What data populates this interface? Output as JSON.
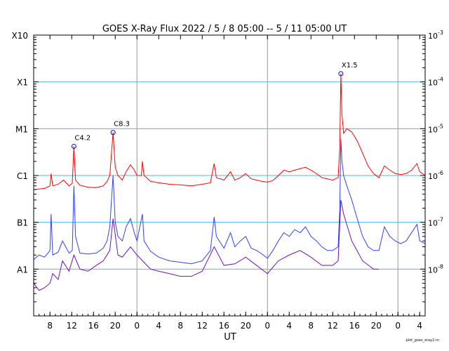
{
  "chart_data": {
    "type": "line",
    "title": "GOES X-Ray Flux   2022 /  5 /  8   05:00 --  5 / 11   05:00   UT",
    "xlabel": "UT",
    "credit": "plot_goes_xray2.rn",
    "x_range_hours": [
      0,
      72
    ],
    "x_tick_labels": [
      "8",
      "12",
      "16",
      "20",
      "0",
      "4",
      "8",
      "12",
      "16",
      "20",
      "0",
      "4",
      "8",
      "12",
      "16",
      "20",
      "0",
      "4"
    ],
    "x_tick_hours": [
      3,
      7,
      11,
      15,
      19,
      23,
      27,
      31,
      35,
      39,
      43,
      47,
      51,
      55,
      59,
      63,
      67,
      71
    ],
    "day_boundaries_hours": [
      19,
      43,
      67
    ],
    "y_scale": "log",
    "ylim": [
      1e-09,
      0.001
    ],
    "left_axis_labels": [
      {
        "label": "A1",
        "value": 1e-08
      },
      {
        "label": "B1",
        "value": 1e-07
      },
      {
        "label": "C1",
        "value": 1e-06
      },
      {
        "label": "M1",
        "value": 1e-05
      },
      {
        "label": "X1",
        "value": 0.0001
      },
      {
        "label": "X10",
        "value": 0.001
      }
    ],
    "right_axis_labels": [
      {
        "label": "10",
        "exp": "-8",
        "value": 1e-08
      },
      {
        "label": "10",
        "exp": "-7",
        "value": 1e-07
      },
      {
        "label": "10",
        "exp": "-6",
        "value": 1e-06
      },
      {
        "label": "10",
        "exp": "-5",
        "value": 1e-05
      },
      {
        "label": "10",
        "exp": "-4",
        "value": 0.0001
      },
      {
        "label": "10",
        "exp": "-3",
        "value": 0.001
      }
    ],
    "grid_levels": [
      1e-08,
      1e-07,
      1e-06,
      1e-05,
      0.0001
    ],
    "flares": [
      {
        "label": "C4.2",
        "hour": 7.4,
        "value": 4.2e-06
      },
      {
        "label": "C8.3",
        "hour": 14.6,
        "value": 8.3e-06
      },
      {
        "label": "X1.5",
        "hour": 56.5,
        "value": 0.00015
      }
    ],
    "series": [
      {
        "color": "#ff0000",
        "points": [
          [
            0,
            5e-07
          ],
          [
            2,
            5.3e-07
          ],
          [
            3,
            6e-07
          ],
          [
            3.2,
            1.1e-06
          ],
          [
            3.5,
            6e-07
          ],
          [
            4.5,
            6.5e-07
          ],
          [
            5.5,
            8e-07
          ],
          [
            6.5,
            6e-07
          ],
          [
            7.1,
            6.8e-07
          ],
          [
            7.4,
            4.2e-06
          ],
          [
            7.7,
            8e-07
          ],
          [
            8.5,
            6.2e-07
          ],
          [
            10,
            5.6e-07
          ],
          [
            11.5,
            5.5e-07
          ],
          [
            12.8,
            6e-07
          ],
          [
            13.5,
            7.5e-07
          ],
          [
            14,
            1e-06
          ],
          [
            14.6,
            8.3e-06
          ],
          [
            15.0,
            1.5e-06
          ],
          [
            15.5,
            1e-06
          ],
          [
            16.3,
            8e-07
          ],
          [
            17,
            1.2e-06
          ],
          [
            17.8,
            1.7e-06
          ],
          [
            18.5,
            1.3e-06
          ],
          [
            19,
            1e-06
          ],
          [
            19.8,
            1e-06
          ],
          [
            20,
            2e-06
          ],
          [
            20.3,
            1e-06
          ],
          [
            21.5,
            7.5e-07
          ],
          [
            23,
            7e-07
          ],
          [
            25,
            6.5e-07
          ],
          [
            27,
            6.3e-07
          ],
          [
            29,
            6e-07
          ],
          [
            31,
            6.5e-07
          ],
          [
            32.5,
            7e-07
          ],
          [
            33.2,
            1.8e-06
          ],
          [
            33.6,
            9e-07
          ],
          [
            35,
            8e-07
          ],
          [
            36.2,
            1.2e-06
          ],
          [
            37,
            8e-07
          ],
          [
            38,
            9e-07
          ],
          [
            39,
            1.1e-06
          ],
          [
            40,
            8.5e-07
          ],
          [
            41,
            8e-07
          ],
          [
            42,
            7.5e-07
          ],
          [
            43,
            7.2e-07
          ],
          [
            44,
            7.8e-07
          ],
          [
            45,
            1e-06
          ],
          [
            46,
            1.3e-06
          ],
          [
            47,
            1.2e-06
          ],
          [
            48,
            1.3e-06
          ],
          [
            49,
            1.4e-06
          ],
          [
            50,
            1.5e-06
          ],
          [
            51,
            1.3e-06
          ],
          [
            52,
            1.1e-06
          ],
          [
            53,
            9e-07
          ],
          [
            54,
            8.5e-07
          ],
          [
            55,
            8e-07
          ],
          [
            56.0,
            9e-07
          ],
          [
            56.3,
            4e-06
          ],
          [
            56.5,
            0.00015
          ],
          [
            56.7,
            2e-05
          ],
          [
            57,
            8e-06
          ],
          [
            57.6,
            1e-05
          ],
          [
            58.5,
            8.5e-06
          ],
          [
            59.5,
            5.5e-06
          ],
          [
            60.5,
            3e-06
          ],
          [
            61.5,
            1.6e-06
          ],
          [
            62.5,
            1.1e-06
          ],
          [
            63.5,
            9e-07
          ],
          [
            64.5,
            1.6e-06
          ],
          [
            65.5,
            1.3e-06
          ],
          [
            66.5,
            1.1e-06
          ],
          [
            67.5,
            1.05e-06
          ],
          [
            68.5,
            1.1e-06
          ],
          [
            69.5,
            1.3e-06
          ],
          [
            70.5,
            1.8e-06
          ],
          [
            71,
            1.2e-06
          ],
          [
            72,
            1e-06
          ]
        ]
      },
      {
        "color": "#3040ff",
        "points": [
          [
            0,
            1.6e-08
          ],
          [
            1,
            2e-08
          ],
          [
            2,
            1.8e-08
          ],
          [
            3,
            2.5e-08
          ],
          [
            3.2,
            1.5e-07
          ],
          [
            3.5,
            2e-08
          ],
          [
            4.5,
            2.3e-08
          ],
          [
            5.3,
            4e-08
          ],
          [
            6.5,
            2.2e-08
          ],
          [
            7.1,
            2.5e-08
          ],
          [
            7.4,
            6e-07
          ],
          [
            7.7,
            5e-08
          ],
          [
            8.5,
            2.2e-08
          ],
          [
            10,
            2.1e-08
          ],
          [
            11.5,
            2.2e-08
          ],
          [
            12.8,
            2.8e-08
          ],
          [
            13.5,
            4e-08
          ],
          [
            14,
            8e-08
          ],
          [
            14.6,
            1e-06
          ],
          [
            15.0,
            1e-07
          ],
          [
            15.5,
            5e-08
          ],
          [
            16.3,
            4e-08
          ],
          [
            17,
            8e-08
          ],
          [
            17.8,
            1.2e-07
          ],
          [
            18.5,
            6e-08
          ],
          [
            19,
            4e-08
          ],
          [
            20,
            1.5e-07
          ],
          [
            20.3,
            4e-08
          ],
          [
            21.5,
            2.4e-08
          ],
          [
            23,
            1.8e-08
          ],
          [
            25,
            1.5e-08
          ],
          [
            27,
            1.4e-08
          ],
          [
            29,
            1.3e-08
          ],
          [
            31,
            1.5e-08
          ],
          [
            32.5,
            2.5e-08
          ],
          [
            33.2,
            1.3e-07
          ],
          [
            33.6,
            5e-08
          ],
          [
            35,
            2.8e-08
          ],
          [
            36.2,
            6e-08
          ],
          [
            37,
            3e-08
          ],
          [
            38,
            4e-08
          ],
          [
            39,
            5e-08
          ],
          [
            40,
            2.8e-08
          ],
          [
            41,
            2.5e-08
          ],
          [
            42,
            2.1e-08
          ],
          [
            43,
            1.7e-08
          ],
          [
            44,
            2.5e-08
          ],
          [
            45,
            4e-08
          ],
          [
            46,
            6e-08
          ],
          [
            47,
            5e-08
          ],
          [
            48,
            7e-08
          ],
          [
            49,
            6e-08
          ],
          [
            50,
            8e-08
          ],
          [
            51,
            5e-08
          ],
          [
            52,
            4e-08
          ],
          [
            53,
            3e-08
          ],
          [
            54,
            2.5e-08
          ],
          [
            55,
            2.5e-08
          ],
          [
            56.0,
            3e-08
          ],
          [
            56.3,
            2e-07
          ],
          [
            56.5,
            6e-06
          ],
          [
            56.7,
            2e-06
          ],
          [
            57,
            1e-06
          ],
          [
            57.6,
            6e-07
          ],
          [
            58.5,
            3e-07
          ],
          [
            59.5,
            1.2e-07
          ],
          [
            60.5,
            5e-08
          ],
          [
            61.5,
            3e-08
          ],
          [
            62.5,
            2.5e-08
          ],
          [
            63.5,
            2.5e-08
          ],
          [
            64.5,
            8e-08
          ],
          [
            65.5,
            5e-08
          ],
          [
            66.5,
            4e-08
          ],
          [
            67.5,
            3.5e-08
          ],
          [
            68.5,
            4e-08
          ],
          [
            69.5,
            6e-08
          ],
          [
            70.5,
            9e-08
          ],
          [
            71,
            4e-08
          ],
          [
            72,
            3.5e-08
          ]
        ]
      },
      {
        "color": "#7010c0",
        "points": [
          [
            0,
            5e-09
          ],
          [
            1,
            3.5e-09
          ],
          [
            2,
            4e-09
          ],
          [
            3,
            5e-09
          ],
          [
            3.5,
            8e-09
          ],
          [
            4.5,
            6e-09
          ],
          [
            5.3,
            1.5e-08
          ],
          [
            6.5,
            9e-09
          ],
          [
            7.4,
            2e-08
          ],
          [
            8.5,
            1e-08
          ],
          [
            10,
            9e-09
          ],
          [
            11.5,
            1.2e-08
          ],
          [
            12.8,
            1.5e-08
          ],
          [
            14,
            2.5e-08
          ],
          [
            14.6,
            1.2e-07
          ],
          [
            15.5,
            2e-08
          ],
          [
            16.3,
            1.8e-08
          ],
          [
            17.8,
            3e-08
          ],
          [
            19,
            2e-08
          ],
          [
            21.5,
            1e-08
          ],
          [
            23,
            9e-09
          ],
          [
            25,
            8e-09
          ],
          [
            27,
            7e-09
          ],
          [
            29,
            7e-09
          ],
          [
            31,
            9e-09
          ],
          [
            33.2,
            3e-08
          ],
          [
            35,
            1.2e-08
          ],
          [
            37,
            1.3e-08
          ],
          [
            39,
            1.8e-08
          ],
          [
            41,
            1.2e-08
          ],
          [
            43,
            8e-09
          ],
          [
            45,
            1.5e-08
          ],
          [
            47,
            2e-08
          ],
          [
            49,
            2.5e-08
          ],
          [
            51,
            1.8e-08
          ],
          [
            53,
            1.2e-08
          ],
          [
            55,
            1.2e-08
          ],
          [
            56.0,
            1.5e-08
          ],
          [
            56.5,
            3e-07
          ],
          [
            57,
            1.5e-07
          ],
          [
            58.5,
            4e-08
          ],
          [
            60.5,
            1.5e-08
          ],
          [
            62.5,
            1e-08
          ],
          [
            63.5,
            1e-08
          ]
        ]
      }
    ]
  }
}
